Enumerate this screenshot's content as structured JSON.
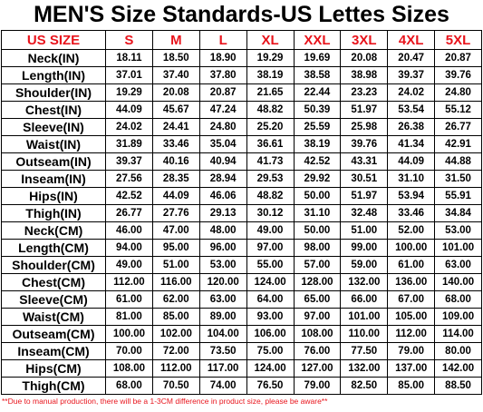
{
  "header": {
    "title": "MEN'S Size Standards-US Lettes Sizes"
  },
  "table": {
    "columns": [
      "US SIZE",
      "S",
      "M",
      "L",
      "XL",
      "XXL",
      "3XL",
      "4XL",
      "5XL"
    ],
    "rows": [
      [
        "Neck(IN)",
        "18.11",
        "18.50",
        "18.90",
        "19.29",
        "19.69",
        "20.08",
        "20.47",
        "20.87"
      ],
      [
        "Length(IN)",
        "37.01",
        "37.40",
        "37.80",
        "38.19",
        "38.58",
        "38.98",
        "39.37",
        "39.76"
      ],
      [
        "Shoulder(IN)",
        "19.29",
        "20.08",
        "20.87",
        "21.65",
        "22.44",
        "23.23",
        "24.02",
        "24.80"
      ],
      [
        "Chest(IN)",
        "44.09",
        "45.67",
        "47.24",
        "48.82",
        "50.39",
        "51.97",
        "53.54",
        "55.12"
      ],
      [
        "Sleeve(IN)",
        "24.02",
        "24.41",
        "24.80",
        "25.20",
        "25.59",
        "25.98",
        "26.38",
        "26.77"
      ],
      [
        "Waist(IN)",
        "31.89",
        "33.46",
        "35.04",
        "36.61",
        "38.19",
        "39.76",
        "41.34",
        "42.91"
      ],
      [
        "Outseam(IN)",
        "39.37",
        "40.16",
        "40.94",
        "41.73",
        "42.52",
        "43.31",
        "44.09",
        "44.88"
      ],
      [
        "Inseam(IN)",
        "27.56",
        "28.35",
        "28.94",
        "29.53",
        "29.92",
        "30.51",
        "31.10",
        "31.50"
      ],
      [
        "Hips(IN)",
        "42.52",
        "44.09",
        "46.06",
        "48.82",
        "50.00",
        "51.97",
        "53.94",
        "55.91"
      ],
      [
        "Thigh(IN)",
        "26.77",
        "27.76",
        "29.13",
        "30.12",
        "31.10",
        "32.48",
        "33.46",
        "34.84"
      ],
      [
        "Neck(CM)",
        "46.00",
        "47.00",
        "48.00",
        "49.00",
        "50.00",
        "51.00",
        "52.00",
        "53.00"
      ],
      [
        "Length(CM)",
        "94.00",
        "95.00",
        "96.00",
        "97.00",
        "98.00",
        "99.00",
        "100.00",
        "101.00"
      ],
      [
        "Shoulder(CM)",
        "49.00",
        "51.00",
        "53.00",
        "55.00",
        "57.00",
        "59.00",
        "61.00",
        "63.00"
      ],
      [
        "Chest(CM)",
        "112.00",
        "116.00",
        "120.00",
        "124.00",
        "128.00",
        "132.00",
        "136.00",
        "140.00"
      ],
      [
        "Sleeve(CM)",
        "61.00",
        "62.00",
        "63.00",
        "64.00",
        "65.00",
        "66.00",
        "67.00",
        "68.00"
      ],
      [
        "Waist(CM)",
        "81.00",
        "85.00",
        "89.00",
        "93.00",
        "97.00",
        "101.00",
        "105.00",
        "109.00"
      ],
      [
        "Outseam(CM)",
        "100.00",
        "102.00",
        "104.00",
        "106.00",
        "108.00",
        "110.00",
        "112.00",
        "114.00"
      ],
      [
        "Inseam(CM)",
        "70.00",
        "72.00",
        "73.50",
        "75.00",
        "76.00",
        "77.50",
        "79.00",
        "80.00"
      ],
      [
        "Hips(CM)",
        "108.00",
        "112.00",
        "117.00",
        "124.00",
        "127.00",
        "132.00",
        "137.00",
        "142.00"
      ],
      [
        "Thigh(CM)",
        "68.00",
        "70.50",
        "74.00",
        "76.50",
        "79.00",
        "82.50",
        "85.00",
        "88.50"
      ]
    ]
  },
  "footer": {
    "note": "**Due to manual production, there will be a 1-3CM difference in product size, please be aware**"
  }
}
